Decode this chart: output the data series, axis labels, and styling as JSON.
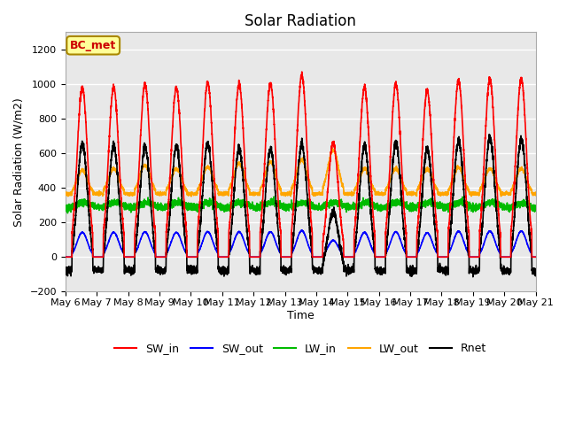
{
  "title": "Solar Radiation",
  "xlabel": "Time",
  "ylabel": "Solar Radiation (W/m2)",
  "ylim": [
    -200,
    1300
  ],
  "yticks": [
    -200,
    0,
    200,
    400,
    600,
    800,
    1000,
    1200
  ],
  "station_label": "BC_met",
  "start_day": 6,
  "end_day": 21,
  "n_days": 15,
  "colors": {
    "SW_in": "#FF0000",
    "SW_out": "#0000FF",
    "LW_in": "#00BB00",
    "LW_out": "#FFA500",
    "Rnet": "#000000"
  },
  "legend_labels": [
    "SW_in",
    "SW_out",
    "LW_in",
    "LW_out",
    "Rnet"
  ],
  "plot_bg": "#E8E8E8",
  "grid_color": "#FFFFFF"
}
